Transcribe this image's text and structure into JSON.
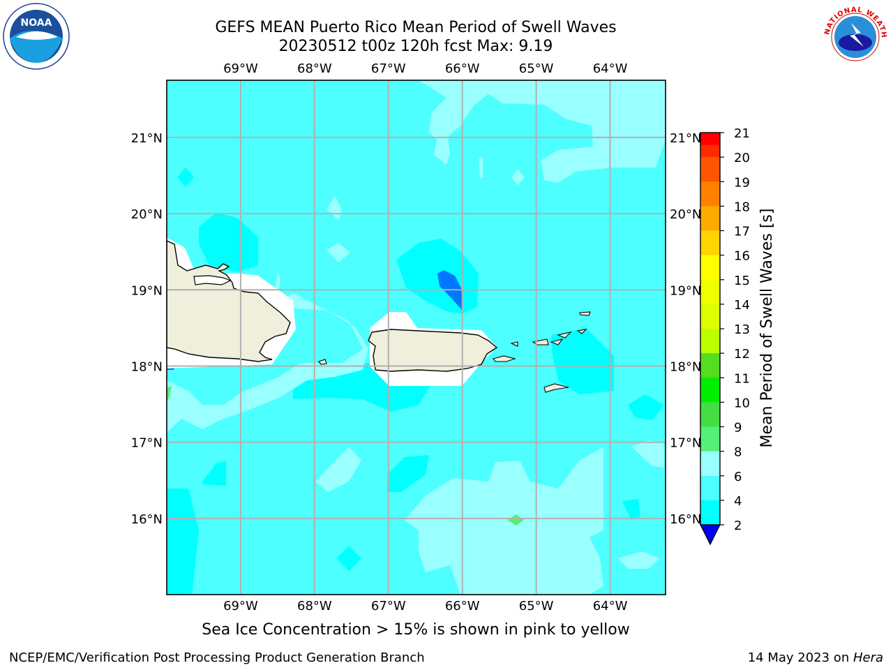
{
  "title": {
    "line1": "GEFS MEAN Puerto Rico Mean Period of Swell Waves",
    "line2": "20230512 t00z 120h fcst   Max: 9.19"
  },
  "map": {
    "lon_ticks": [
      "69°W",
      "68°W",
      "67°W",
      "66°W",
      "65°W",
      "64°W"
    ],
    "lat_ticks": [
      "21°N",
      "20°N",
      "19°N",
      "18°N",
      "17°N",
      "16°N"
    ],
    "lon_range": [
      -70.0,
      -63.25
    ],
    "lat_range": [
      15.0,
      21.75
    ],
    "field_colors": {
      "2-4": "#0077ff",
      "4-6": "#00ffff",
      "6-8": "#4dffff",
      "8-9": "#99ffff",
      "9-10": "#55ee77",
      "land": "#efefdc",
      "masked": "#ffffff"
    }
  },
  "colorbar": {
    "label": "Mean Period of Swell Waves [s]",
    "ticks": [
      "21",
      "20",
      "19",
      "18",
      "17",
      "16",
      "15",
      "14",
      "13",
      "12",
      "11",
      "10",
      "9",
      "8",
      "6",
      "4",
      "2"
    ],
    "colors_top_to_bottom": [
      "#ff0000",
      "#ff2a00",
      "#ff5500",
      "#ff8000",
      "#ffaa00",
      "#ffd400",
      "#ffff00",
      "#eeff00",
      "#ddff00",
      "#bbff00",
      "#55dd22",
      "#00ee00",
      "#44dd44",
      "#55f077",
      "#99ffff",
      "#4dffff",
      "#00ffff",
      "#0077ff",
      "#0000ee"
    ]
  },
  "note": "Sea Ice Concentration > 15% is shown in pink to yellow",
  "footer": {
    "left": "NCEP/EMC/Verification Post Processing Product Generation Branch",
    "right_date": "14 May 2023 on ",
    "right_host": "Hera"
  },
  "logos": {
    "left": "NOAA",
    "right": "NATIONAL WEATHER SERVICE"
  }
}
